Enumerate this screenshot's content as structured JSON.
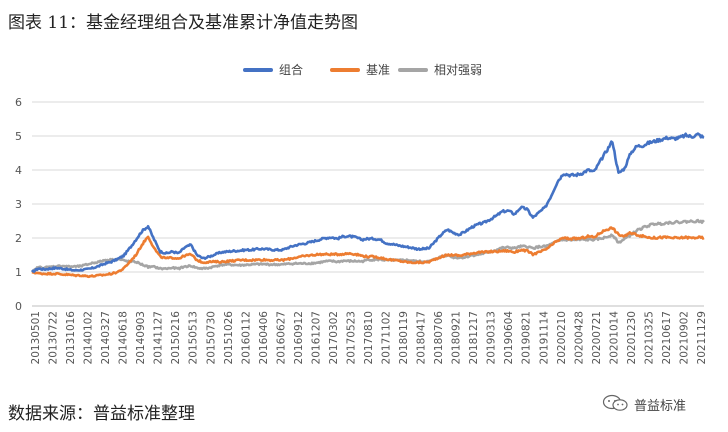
{
  "figure": {
    "title": "图表 11：基金经理组合及基准累计净值走势图",
    "source_note": "数据来源：普益标准整理",
    "watermark_text": "普益标准",
    "watermark_icon": "wechat-icon"
  },
  "chart_data": {
    "type": "line",
    "title": "",
    "xlabel": "",
    "ylabel": "",
    "ylim": [
      0,
      6
    ],
    "yticks": [
      0,
      1,
      2,
      3,
      4,
      5,
      6
    ],
    "grid": "horizontal",
    "legend_position": "top",
    "x_tick_labels": [
      "20130501",
      "20130722",
      "20131016",
      "20140102",
      "20140327",
      "20140618",
      "20140903",
      "20141127",
      "20150216",
      "20150513",
      "20150730",
      "20151026",
      "20160112",
      "20160406",
      "20160627",
      "20160912",
      "20161207",
      "20170302",
      "20170523",
      "20170810",
      "20171102",
      "20180119",
      "20180417",
      "20180706",
      "20180921",
      "20181217",
      "20190313",
      "20190604",
      "20190821",
      "20191114",
      "20200210",
      "20200428",
      "20200721",
      "20201014",
      "20201230",
      "20210325",
      "20210617",
      "20210902",
      "20211129"
    ],
    "series": [
      {
        "name": "组合",
        "color": "#4472C4",
        "values": [
          1.0,
          1.1,
          1.08,
          1.1,
          1.12,
          1.1,
          1.07,
          1.05,
          1.06,
          1.08,
          1.12,
          1.18,
          1.25,
          1.3,
          1.38,
          1.48,
          1.7,
          1.95,
          2.2,
          2.35,
          1.95,
          1.6,
          1.55,
          1.6,
          1.55,
          1.72,
          1.8,
          1.5,
          1.4,
          1.45,
          1.52,
          1.58,
          1.6,
          1.62,
          1.63,
          1.65,
          1.65,
          1.68,
          1.68,
          1.66,
          1.65,
          1.65,
          1.72,
          1.78,
          1.82,
          1.85,
          1.9,
          1.95,
          2.0,
          2.02,
          1.98,
          2.05,
          2.05,
          2.02,
          1.95,
          1.98,
          1.98,
          1.95,
          1.85,
          1.82,
          1.78,
          1.75,
          1.72,
          1.68,
          1.68,
          1.7,
          1.9,
          2.1,
          2.25,
          2.15,
          2.1,
          2.2,
          2.32,
          2.4,
          2.45,
          2.55,
          2.65,
          2.78,
          2.8,
          2.7,
          2.9,
          2.85,
          2.6,
          2.75,
          2.9,
          3.25,
          3.65,
          3.9,
          3.85,
          3.85,
          3.9,
          4.0,
          3.95,
          4.25,
          4.55,
          4.85,
          3.9,
          4.05,
          4.5,
          4.7,
          4.72,
          4.8,
          4.85,
          4.9,
          4.95,
          4.92,
          4.95,
          5.02,
          4.98,
          5.05,
          4.95
        ]
      },
      {
        "name": "基准",
        "color": "#ED7D31",
        "values": [
          1.0,
          0.96,
          0.95,
          0.95,
          0.95,
          0.93,
          0.92,
          0.9,
          0.9,
          0.88,
          0.88,
          0.9,
          0.92,
          0.95,
          1.0,
          1.1,
          1.3,
          1.5,
          1.8,
          2.05,
          1.7,
          1.45,
          1.4,
          1.42,
          1.4,
          1.48,
          1.52,
          1.35,
          1.28,
          1.3,
          1.3,
          1.3,
          1.32,
          1.33,
          1.35,
          1.35,
          1.35,
          1.36,
          1.36,
          1.35,
          1.35,
          1.35,
          1.38,
          1.42,
          1.45,
          1.48,
          1.5,
          1.52,
          1.52,
          1.52,
          1.52,
          1.53,
          1.55,
          1.52,
          1.48,
          1.45,
          1.45,
          1.42,
          1.38,
          1.35,
          1.33,
          1.3,
          1.28,
          1.28,
          1.28,
          1.3,
          1.38,
          1.45,
          1.5,
          1.5,
          1.48,
          1.52,
          1.55,
          1.58,
          1.58,
          1.6,
          1.6,
          1.62,
          1.62,
          1.58,
          1.65,
          1.62,
          1.52,
          1.58,
          1.65,
          1.78,
          1.92,
          2.0,
          1.98,
          1.98,
          2.0,
          2.05,
          2.02,
          2.15,
          2.25,
          2.3,
          2.1,
          2.05,
          2.15,
          2.1,
          2.05,
          2.02,
          2.0,
          2.02,
          2.02,
          2.0,
          2.0,
          2.02,
          2.0,
          2.02,
          2.0
        ]
      },
      {
        "name": "相对强弱",
        "color": "#A5A5A5",
        "values": [
          1.0,
          1.14,
          1.13,
          1.15,
          1.17,
          1.18,
          1.16,
          1.16,
          1.17,
          1.22,
          1.27,
          1.3,
          1.35,
          1.36,
          1.38,
          1.34,
          1.3,
          1.3,
          1.22,
          1.15,
          1.15,
          1.1,
          1.1,
          1.12,
          1.1,
          1.16,
          1.18,
          1.12,
          1.1,
          1.12,
          1.17,
          1.21,
          1.22,
          1.21,
          1.2,
          1.21,
          1.22,
          1.23,
          1.23,
          1.22,
          1.22,
          1.22,
          1.24,
          1.25,
          1.25,
          1.25,
          1.26,
          1.28,
          1.31,
          1.32,
          1.3,
          1.33,
          1.32,
          1.32,
          1.31,
          1.36,
          1.36,
          1.37,
          1.34,
          1.35,
          1.34,
          1.35,
          1.34,
          1.31,
          1.31,
          1.31,
          1.38,
          1.45,
          1.5,
          1.43,
          1.42,
          1.44,
          1.49,
          1.51,
          1.55,
          1.59,
          1.65,
          1.71,
          1.72,
          1.7,
          1.75,
          1.75,
          1.7,
          1.74,
          1.75,
          1.82,
          1.9,
          1.95,
          1.94,
          1.94,
          1.95,
          1.95,
          1.95,
          1.98,
          2.02,
          2.1,
          1.86,
          1.97,
          2.09,
          2.22,
          2.3,
          2.37,
          2.42,
          2.42,
          2.45,
          2.46,
          2.47,
          2.48,
          2.49,
          2.5,
          2.47
        ]
      }
    ]
  }
}
